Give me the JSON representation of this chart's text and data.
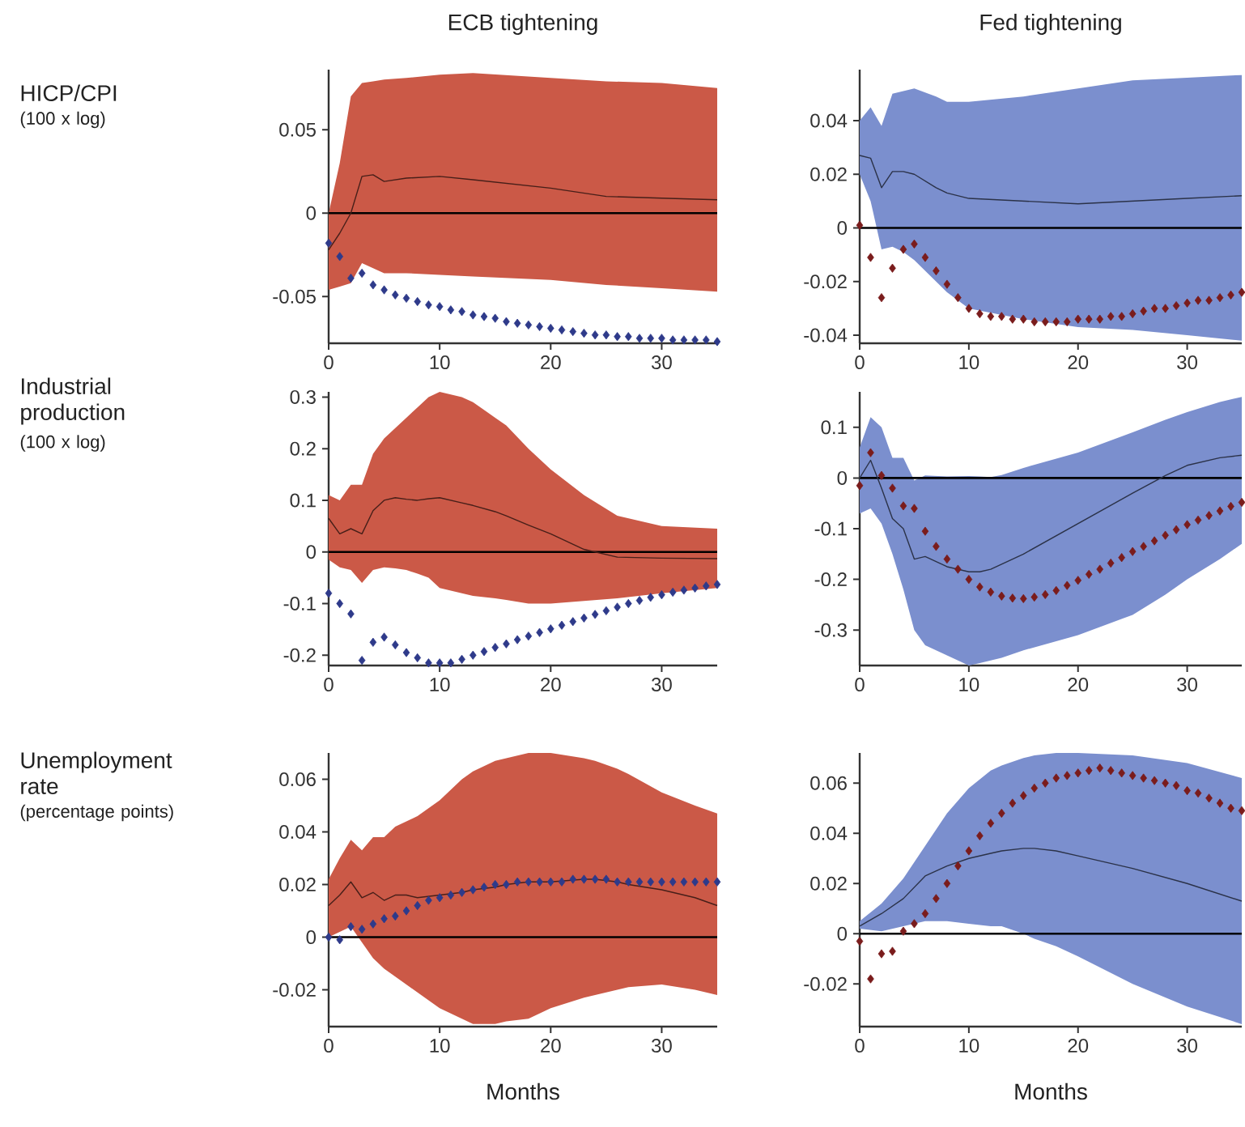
{
  "chart_data": [
    {
      "type": "line",
      "title": "ECB tightening",
      "ylabel": "HICP/CPI",
      "annotations": [
        "(100 x log)"
      ],
      "xlim": [
        0,
        35
      ],
      "ylim": [
        -0.078,
        0.086
      ],
      "xticks": [
        0,
        10,
        20,
        30
      ],
      "yticks": [
        -0.05,
        0,
        0.05
      ],
      "ref_lines": [
        {
          "axis": "y",
          "value": 0,
          "color": "#000000"
        }
      ],
      "series": [
        {
          "color": "#471f19",
          "x": [
            0,
            1,
            2,
            3,
            4,
            5,
            7,
            10,
            13,
            20,
            25,
            30,
            35
          ],
          "values": [
            -0.022,
            -0.012,
            0.0,
            0.022,
            0.023,
            0.019,
            0.021,
            0.022,
            0.02,
            0.015,
            0.01,
            0.009,
            0.008
          ],
          "upper": [
            0.0,
            0.03,
            0.07,
            0.078,
            0.079,
            0.08,
            0.081,
            0.083,
            0.084,
            0.081,
            0.079,
            0.078,
            0.075
          ],
          "lower": [
            -0.046,
            -0.044,
            -0.042,
            -0.03,
            -0.033,
            -0.036,
            -0.036,
            -0.037,
            -0.038,
            -0.04,
            -0.043,
            -0.045,
            -0.047
          ]
        },
        {
          "type": "scatter",
          "marker": "diamond",
          "color": "#2e3a8a",
          "x": [
            0,
            1,
            2,
            3,
            4,
            5,
            6,
            7,
            8,
            9,
            10,
            11,
            12,
            13,
            14,
            15,
            16,
            17,
            18,
            19,
            20,
            21,
            22,
            23,
            24,
            25,
            26,
            27,
            28,
            29,
            30,
            31,
            32,
            33,
            34,
            35
          ],
          "values": [
            -0.018,
            -0.026,
            -0.039,
            -0.036,
            -0.043,
            -0.046,
            -0.049,
            -0.051,
            -0.053,
            -0.055,
            -0.056,
            -0.058,
            -0.059,
            -0.061,
            -0.062,
            -0.063,
            -0.065,
            -0.066,
            -0.067,
            -0.068,
            -0.069,
            -0.07,
            -0.071,
            -0.072,
            -0.073,
            -0.073,
            -0.074,
            -0.074,
            -0.075,
            -0.075,
            -0.075,
            -0.076,
            -0.076,
            -0.076,
            -0.076,
            -0.077
          ]
        }
      ]
    },
    {
      "type": "line",
      "title": "Fed tightening",
      "xlim": [
        0,
        35
      ],
      "ylim": [
        -0.043,
        0.059
      ],
      "xticks": [
        0,
        10,
        20,
        30
      ],
      "yticks": [
        -0.04,
        -0.02,
        0,
        0.02,
        0.04
      ],
      "ref_lines": [
        {
          "axis": "y",
          "value": 0,
          "color": "#000000"
        }
      ],
      "series": [
        {
          "color": "#2b3248",
          "x": [
            0,
            1,
            2,
            3,
            4,
            5,
            7,
            8,
            10,
            15,
            20,
            25,
            30,
            35
          ],
          "values": [
            0.027,
            0.026,
            0.015,
            0.021,
            0.021,
            0.02,
            0.015,
            0.013,
            0.011,
            0.01,
            0.009,
            0.01,
            0.011,
            0.012
          ],
          "upper": [
            0.04,
            0.045,
            0.038,
            0.05,
            0.051,
            0.052,
            0.049,
            0.047,
            0.047,
            0.049,
            0.052,
            0.055,
            0.056,
            0.057
          ],
          "lower": [
            0.02,
            0.01,
            -0.008,
            -0.007,
            -0.009,
            -0.012,
            -0.02,
            -0.024,
            -0.03,
            -0.034,
            -0.037,
            -0.038,
            -0.04,
            -0.042
          ]
        },
        {
          "type": "scatter",
          "marker": "diamond",
          "color": "#7a1c1c",
          "x": [
            0,
            1,
            2,
            3,
            4,
            5,
            6,
            7,
            8,
            9,
            10,
            11,
            12,
            13,
            14,
            15,
            16,
            17,
            18,
            19,
            20,
            21,
            22,
            23,
            24,
            25,
            26,
            27,
            28,
            29,
            30,
            31,
            32,
            33,
            34,
            35
          ],
          "values": [
            0.001,
            -0.011,
            -0.026,
            -0.015,
            -0.008,
            -0.006,
            -0.011,
            -0.016,
            -0.021,
            -0.026,
            -0.03,
            -0.032,
            -0.033,
            -0.033,
            -0.034,
            -0.034,
            -0.035,
            -0.035,
            -0.035,
            -0.035,
            -0.034,
            -0.034,
            -0.034,
            -0.033,
            -0.033,
            -0.032,
            -0.031,
            -0.03,
            -0.03,
            -0.029,
            -0.028,
            -0.027,
            -0.027,
            -0.026,
            -0.025,
            -0.024
          ]
        }
      ]
    },
    {
      "type": "line",
      "ylabel": "Industrial production",
      "annotations": [
        "(100 x log)"
      ],
      "xlim": [
        0,
        35
      ],
      "ylim": [
        -0.22,
        0.31
      ],
      "xticks": [
        0,
        10,
        20,
        30
      ],
      "yticks": [
        -0.2,
        -0.1,
        0,
        0.1,
        0.2,
        0.3
      ],
      "ref_lines": [
        {
          "axis": "y",
          "value": 0,
          "color": "#000000"
        }
      ],
      "series": [
        {
          "color": "#471f19",
          "x": [
            0,
            1,
            2,
            3,
            4,
            5,
            6,
            7,
            8,
            9,
            10,
            12,
            13,
            15,
            16,
            18,
            20,
            23,
            26,
            30,
            35
          ],
          "values": [
            0.065,
            0.035,
            0.045,
            0.035,
            0.08,
            0.1,
            0.105,
            0.102,
            0.1,
            0.103,
            0.105,
            0.095,
            0.09,
            0.078,
            0.07,
            0.052,
            0.035,
            0.005,
            -0.01,
            -0.012,
            -0.013
          ],
          "upper": [
            0.11,
            0.1,
            0.13,
            0.13,
            0.19,
            0.22,
            0.24,
            0.26,
            0.28,
            0.3,
            0.31,
            0.3,
            0.29,
            0.26,
            0.245,
            0.2,
            0.16,
            0.11,
            0.07,
            0.05,
            0.045
          ],
          "lower": [
            -0.015,
            -0.03,
            -0.035,
            -0.06,
            -0.035,
            -0.03,
            -0.032,
            -0.035,
            -0.042,
            -0.05,
            -0.07,
            -0.08,
            -0.085,
            -0.09,
            -0.093,
            -0.1,
            -0.1,
            -0.095,
            -0.09,
            -0.08,
            -0.07
          ]
        },
        {
          "type": "scatter",
          "marker": "diamond",
          "color": "#2e3a8a",
          "x": [
            0,
            1,
            2,
            3,
            4,
            5,
            6,
            7,
            8,
            9,
            10,
            11,
            12,
            13,
            14,
            15,
            16,
            17,
            18,
            19,
            20,
            21,
            22,
            23,
            24,
            25,
            26,
            27,
            28,
            29,
            30,
            31,
            32,
            33,
            34,
            35
          ],
          "values": [
            -0.08,
            -0.1,
            -0.12,
            -0.21,
            -0.175,
            -0.165,
            -0.18,
            -0.195,
            -0.205,
            -0.215,
            -0.215,
            -0.215,
            -0.208,
            -0.2,
            -0.193,
            -0.185,
            -0.178,
            -0.17,
            -0.163,
            -0.156,
            -0.149,
            -0.142,
            -0.135,
            -0.128,
            -0.121,
            -0.114,
            -0.107,
            -0.1,
            -0.094,
            -0.088,
            -0.083,
            -0.078,
            -0.074,
            -0.07,
            -0.066,
            -0.063
          ]
        }
      ]
    },
    {
      "type": "line",
      "xlim": [
        0,
        35
      ],
      "ylim": [
        -0.37,
        0.17
      ],
      "xticks": [
        0,
        10,
        20,
        30
      ],
      "yticks": [
        -0.3,
        -0.2,
        -0.1,
        0,
        0.1
      ],
      "ref_lines": [
        {
          "axis": "y",
          "value": 0,
          "color": "#000000"
        }
      ],
      "series": [
        {
          "color": "#2b3248",
          "x": [
            0,
            1,
            2,
            3,
            4,
            5,
            6,
            8,
            10,
            11,
            12,
            13,
            15,
            20,
            25,
            28,
            30,
            33,
            35
          ],
          "values": [
            0.0,
            0.035,
            -0.02,
            -0.08,
            -0.1,
            -0.16,
            -0.155,
            -0.175,
            -0.185,
            -0.185,
            -0.18,
            -0.17,
            -0.15,
            -0.09,
            -0.03,
            0.005,
            0.025,
            0.04,
            0.045
          ],
          "upper": [
            0.06,
            0.12,
            0.1,
            0.04,
            0.04,
            -0.005,
            0.005,
            0.003,
            0.004,
            0.003,
            0.002,
            0.006,
            0.02,
            0.05,
            0.09,
            0.115,
            0.13,
            0.15,
            0.16
          ],
          "lower": [
            -0.07,
            -0.06,
            -0.09,
            -0.15,
            -0.22,
            -0.3,
            -0.33,
            -0.35,
            -0.37,
            -0.365,
            -0.36,
            -0.355,
            -0.34,
            -0.31,
            -0.27,
            -0.23,
            -0.2,
            -0.16,
            -0.13
          ]
        },
        {
          "type": "scatter",
          "marker": "diamond",
          "color": "#7a1c1c",
          "x": [
            0,
            1,
            2,
            3,
            4,
            5,
            6,
            7,
            8,
            9,
            10,
            11,
            12,
            13,
            14,
            15,
            16,
            17,
            18,
            19,
            20,
            21,
            22,
            23,
            24,
            25,
            26,
            27,
            28,
            29,
            30,
            31,
            32,
            33,
            34,
            35
          ],
          "values": [
            -0.015,
            0.05,
            0.005,
            -0.02,
            -0.055,
            -0.06,
            -0.105,
            -0.135,
            -0.16,
            -0.18,
            -0.2,
            -0.215,
            -0.225,
            -0.233,
            -0.237,
            -0.238,
            -0.235,
            -0.23,
            -0.222,
            -0.212,
            -0.202,
            -0.19,
            -0.18,
            -0.168,
            -0.157,
            -0.145,
            -0.135,
            -0.124,
            -0.113,
            -0.102,
            -0.092,
            -0.083,
            -0.074,
            -0.065,
            -0.056,
            -0.048
          ]
        }
      ]
    },
    {
      "type": "line",
      "ylabel": "Unemployment rate",
      "annotations": [
        "(percentage points)"
      ],
      "xlabel": "Months",
      "xlim": [
        0,
        35
      ],
      "ylim": [
        -0.034,
        0.07
      ],
      "xticks": [
        0,
        10,
        20,
        30
      ],
      "yticks": [
        -0.02,
        0,
        0.02,
        0.04,
        0.06
      ],
      "ref_lines": [
        {
          "axis": "y",
          "value": 0,
          "color": "#000000"
        }
      ],
      "series": [
        {
          "color": "#471f19",
          "x": [
            0,
            1,
            2,
            3,
            4,
            5,
            6,
            7,
            8,
            10,
            12,
            13,
            15,
            16,
            18,
            20,
            23,
            24,
            26,
            27,
            30,
            33,
            35
          ],
          "values": [
            0.012,
            0.016,
            0.021,
            0.015,
            0.017,
            0.014,
            0.016,
            0.016,
            0.015,
            0.016,
            0.017,
            0.018,
            0.019,
            0.02,
            0.021,
            0.021,
            0.022,
            0.022,
            0.021,
            0.02,
            0.018,
            0.015,
            0.012
          ],
          "upper": [
            0.022,
            0.03,
            0.037,
            0.033,
            0.038,
            0.038,
            0.042,
            0.044,
            0.046,
            0.052,
            0.06,
            0.063,
            0.067,
            0.068,
            0.07,
            0.07,
            0.068,
            0.067,
            0.064,
            0.062,
            0.055,
            0.05,
            0.047
          ],
          "lower": [
            0.0,
            0.002,
            0.004,
            -0.002,
            -0.008,
            -0.012,
            -0.015,
            -0.018,
            -0.021,
            -0.027,
            -0.031,
            -0.033,
            -0.033,
            -0.032,
            -0.031,
            -0.027,
            -0.023,
            -0.022,
            -0.02,
            -0.019,
            -0.018,
            -0.02,
            -0.022
          ]
        },
        {
          "type": "scatter",
          "marker": "diamond",
          "color": "#2e3a8a",
          "x": [
            0,
            1,
            2,
            3,
            4,
            5,
            6,
            7,
            8,
            9,
            10,
            11,
            12,
            13,
            14,
            15,
            16,
            17,
            18,
            19,
            20,
            21,
            22,
            23,
            24,
            25,
            26,
            27,
            28,
            29,
            30,
            31,
            32,
            33,
            34,
            35
          ],
          "values": [
            0.0,
            -0.001,
            0.004,
            0.003,
            0.005,
            0.007,
            0.008,
            0.01,
            0.012,
            0.014,
            0.015,
            0.016,
            0.017,
            0.018,
            0.019,
            0.02,
            0.02,
            0.021,
            0.021,
            0.021,
            0.021,
            0.021,
            0.022,
            0.022,
            0.022,
            0.022,
            0.021,
            0.021,
            0.021,
            0.021,
            0.021,
            0.021,
            0.021,
            0.021,
            0.021,
            0.021
          ]
        }
      ]
    },
    {
      "type": "line",
      "xlabel": "Months",
      "xlim": [
        0,
        35
      ],
      "ylim": [
        -0.037,
        0.072
      ],
      "xticks": [
        0,
        10,
        20,
        30
      ],
      "yticks": [
        -0.02,
        0,
        0.02,
        0.04,
        0.06
      ],
      "ref_lines": [
        {
          "axis": "y",
          "value": 0,
          "color": "#000000"
        }
      ],
      "series": [
        {
          "color": "#2b3248",
          "x": [
            0,
            2,
            4,
            6,
            8,
            10,
            12,
            13,
            15,
            16,
            18,
            20,
            25,
            30,
            35
          ],
          "values": [
            0.003,
            0.008,
            0.014,
            0.023,
            0.027,
            0.03,
            0.032,
            0.033,
            0.034,
            0.034,
            0.033,
            0.031,
            0.026,
            0.02,
            0.013
          ],
          "upper": [
            0.005,
            0.012,
            0.022,
            0.035,
            0.048,
            0.058,
            0.065,
            0.067,
            0.07,
            0.071,
            0.072,
            0.072,
            0.071,
            0.068,
            0.062
          ],
          "lower": [
            0.002,
            0.001,
            0.003,
            0.005,
            0.005,
            0.004,
            0.003,
            0.003,
            0.0,
            -0.002,
            -0.005,
            -0.009,
            -0.02,
            -0.029,
            -0.036
          ]
        },
        {
          "type": "scatter",
          "marker": "diamond",
          "color": "#7a1c1c",
          "x": [
            0,
            1,
            2,
            3,
            4,
            5,
            6,
            7,
            8,
            9,
            10,
            11,
            12,
            13,
            14,
            15,
            16,
            17,
            18,
            19,
            20,
            21,
            22,
            23,
            24,
            25,
            26,
            27,
            28,
            29,
            30,
            31,
            32,
            33,
            34,
            35
          ],
          "values": [
            -0.003,
            -0.018,
            -0.008,
            -0.007,
            0.001,
            0.004,
            0.008,
            0.014,
            0.02,
            0.027,
            0.033,
            0.039,
            0.044,
            0.048,
            0.052,
            0.055,
            0.058,
            0.06,
            0.062,
            0.063,
            0.064,
            0.065,
            0.066,
            0.065,
            0.064,
            0.063,
            0.062,
            0.061,
            0.06,
            0.059,
            0.057,
            0.056,
            0.054,
            0.052,
            0.05,
            0.049
          ]
        }
      ]
    }
  ]
}
